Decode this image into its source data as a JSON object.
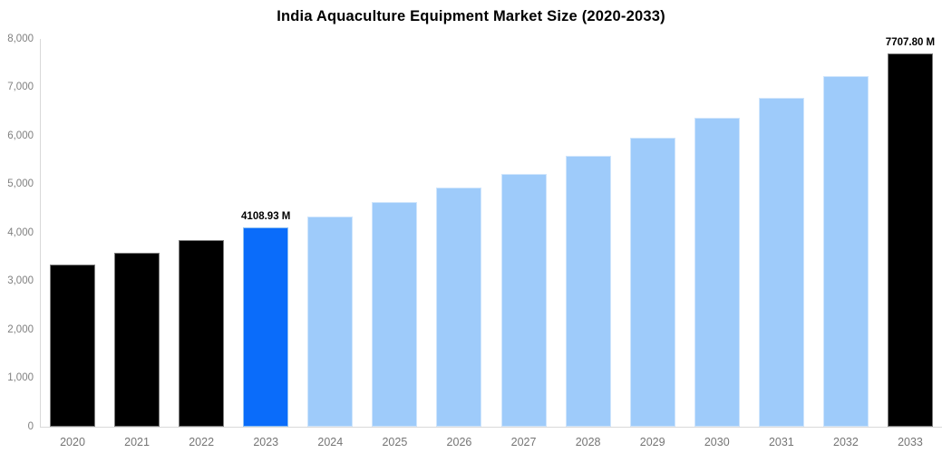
{
  "title": "India Aquaculture Equipment Market Size (2020-2033)",
  "chart_data": {
    "type": "bar",
    "title": "India Aquaculture Equipment Market Size (2020-2033)",
    "xlabel": "",
    "ylabel": "",
    "unit": "M",
    "categories": [
      "2020",
      "2021",
      "2022",
      "2023",
      "2024",
      "2025",
      "2026",
      "2027",
      "2028",
      "2029",
      "2030",
      "2031",
      "2032",
      "2033"
    ],
    "values": [
      3345,
      3590,
      3850,
      4108.93,
      4340,
      4640,
      4935,
      5215,
      5590,
      5965,
      6375,
      6785,
      7235,
      7707.8
    ],
    "data_labels": [
      null,
      null,
      null,
      "4108.93 M",
      null,
      null,
      null,
      null,
      null,
      null,
      null,
      null,
      null,
      "7707.80 M"
    ],
    "bar_colors": [
      "#000000",
      "#000000",
      "#000000",
      "#0a6cfa",
      "#9ecbfa",
      "#9ecbfa",
      "#9ecbfa",
      "#9ecbfa",
      "#9ecbfa",
      "#9ecbfa",
      "#9ecbfa",
      "#9ecbfa",
      "#9ecbfa",
      "#000000"
    ],
    "bar_border_colors": [
      "#7d7d7d",
      "#7d7d7d",
      "#7d7d7d",
      "#8ec0f2",
      "#cfe5fc",
      "#cfe5fc",
      "#cfe5fc",
      "#cfe5fc",
      "#cfe5fc",
      "#cfe5fc",
      "#cfe5fc",
      "#cfe5fc",
      "#cfe5fc",
      "#7d7d7d"
    ],
    "ylim": [
      0,
      8000
    ],
    "ytick_step": 1000,
    "ytick_labels": [
      "0",
      "1,000",
      "2,000",
      "3,000",
      "4,000",
      "5,000",
      "6,000",
      "7,000",
      "8,000"
    ],
    "grid": false,
    "legend": false
  },
  "colors": {
    "background": "#ffffff",
    "axis_line": "#d9d9d9",
    "y_tick_text": "#808080",
    "x_tick_text": "#757575",
    "title_text": "#000000",
    "data_label_text": "#000000",
    "historical_bar": "#000000",
    "highlight_bar": "#0a6cfa",
    "forecast_bar": "#9ecbfa"
  }
}
